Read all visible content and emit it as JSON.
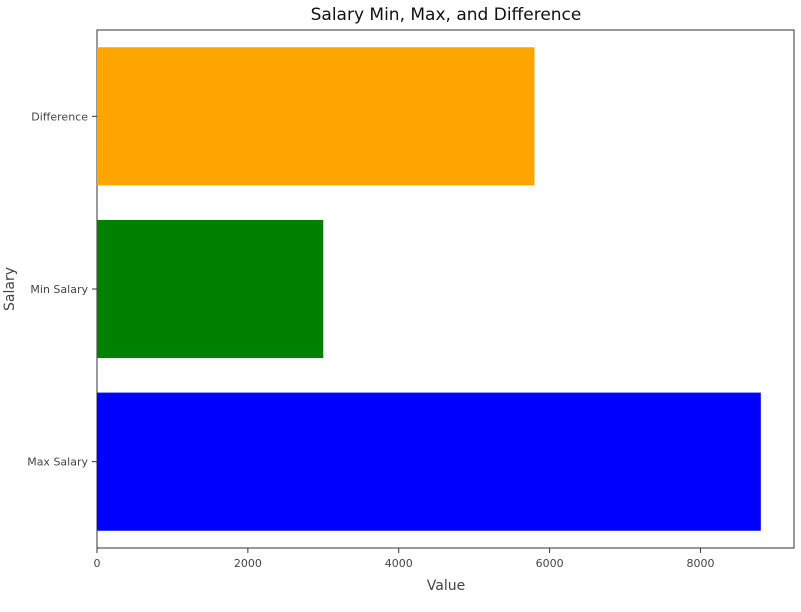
{
  "chart_data": {
    "type": "bar",
    "orientation": "horizontal",
    "title": "Salary Min, Max, and Difference",
    "xlabel": "Value",
    "ylabel": "Salary",
    "categories": [
      "Max Salary",
      "Min Salary",
      "Difference"
    ],
    "values": [
      8800,
      3000,
      5800
    ],
    "colors": [
      "#0000ff",
      "#008000",
      "#ffa500"
    ],
    "xlim": [
      0,
      9240
    ],
    "xticks": [
      0,
      2000,
      4000,
      6000,
      8000
    ],
    "grid": false,
    "legend": "none"
  }
}
